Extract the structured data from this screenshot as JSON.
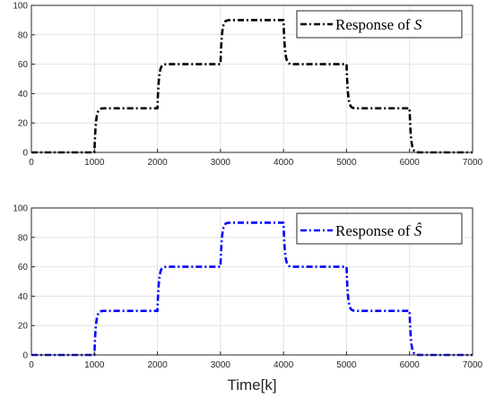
{
  "chart_data": [
    {
      "type": "line",
      "title": "",
      "xlabel": "",
      "ylabel": "",
      "xlim": [
        0,
        7000
      ],
      "ylim": [
        0,
        100
      ],
      "xticks": [
        "0",
        "1000",
        "2000",
        "3000",
        "4000",
        "5000",
        "6000",
        "7000"
      ],
      "yticks": [
        "0",
        "20",
        "40",
        "60",
        "80",
        "100"
      ],
      "grid": true,
      "legend_position": "top-right",
      "series": [
        {
          "name": "Response of S",
          "legend_text": "Response of ",
          "legend_symbol": "S",
          "color": "#000000",
          "line_style": "dash-dot",
          "x": [
            0,
            1000,
            2000,
            3000,
            4000,
            5000,
            6000,
            7000
          ],
          "y": [
            0,
            30,
            60,
            90,
            60,
            30,
            0,
            0
          ],
          "step_levels": [
            {
              "from": 0,
              "to": 1000,
              "value": 0
            },
            {
              "from": 1000,
              "to": 2000,
              "value": 30
            },
            {
              "from": 2000,
              "to": 3000,
              "value": 60
            },
            {
              "from": 3000,
              "to": 4000,
              "value": 90
            },
            {
              "from": 4000,
              "to": 5000,
              "value": 60
            },
            {
              "from": 5000,
              "to": 6000,
              "value": 30
            },
            {
              "from": 6000,
              "to": 7000,
              "value": 0
            }
          ]
        }
      ]
    },
    {
      "type": "line",
      "title": "",
      "xlabel": "Time[k]",
      "ylabel": "",
      "xlim": [
        0,
        7000
      ],
      "ylim": [
        0,
        100
      ],
      "xticks": [
        "0",
        "1000",
        "2000",
        "3000",
        "4000",
        "5000",
        "6000",
        "7000"
      ],
      "yticks": [
        "0",
        "20",
        "40",
        "60",
        "80",
        "100"
      ],
      "grid": true,
      "legend_position": "top-right",
      "series": [
        {
          "name": "Response of Ŝ",
          "legend_text": "Response of ",
          "legend_symbol": "Ŝ",
          "color": "#0000ff",
          "line_style": "dash-dot",
          "x": [
            0,
            1000,
            2000,
            3000,
            4000,
            5000,
            6000,
            7000
          ],
          "y": [
            0,
            30,
            60,
            90,
            60,
            30,
            0,
            0
          ],
          "step_levels": [
            {
              "from": 0,
              "to": 1000,
              "value": 0
            },
            {
              "from": 1000,
              "to": 2000,
              "value": 30
            },
            {
              "from": 2000,
              "to": 3000,
              "value": 60
            },
            {
              "from": 3000,
              "to": 4000,
              "value": 90
            },
            {
              "from": 4000,
              "to": 5000,
              "value": 60
            },
            {
              "from": 5000,
              "to": 6000,
              "value": 30
            },
            {
              "from": 6000,
              "to": 7000,
              "value": 0
            }
          ]
        }
      ]
    }
  ]
}
